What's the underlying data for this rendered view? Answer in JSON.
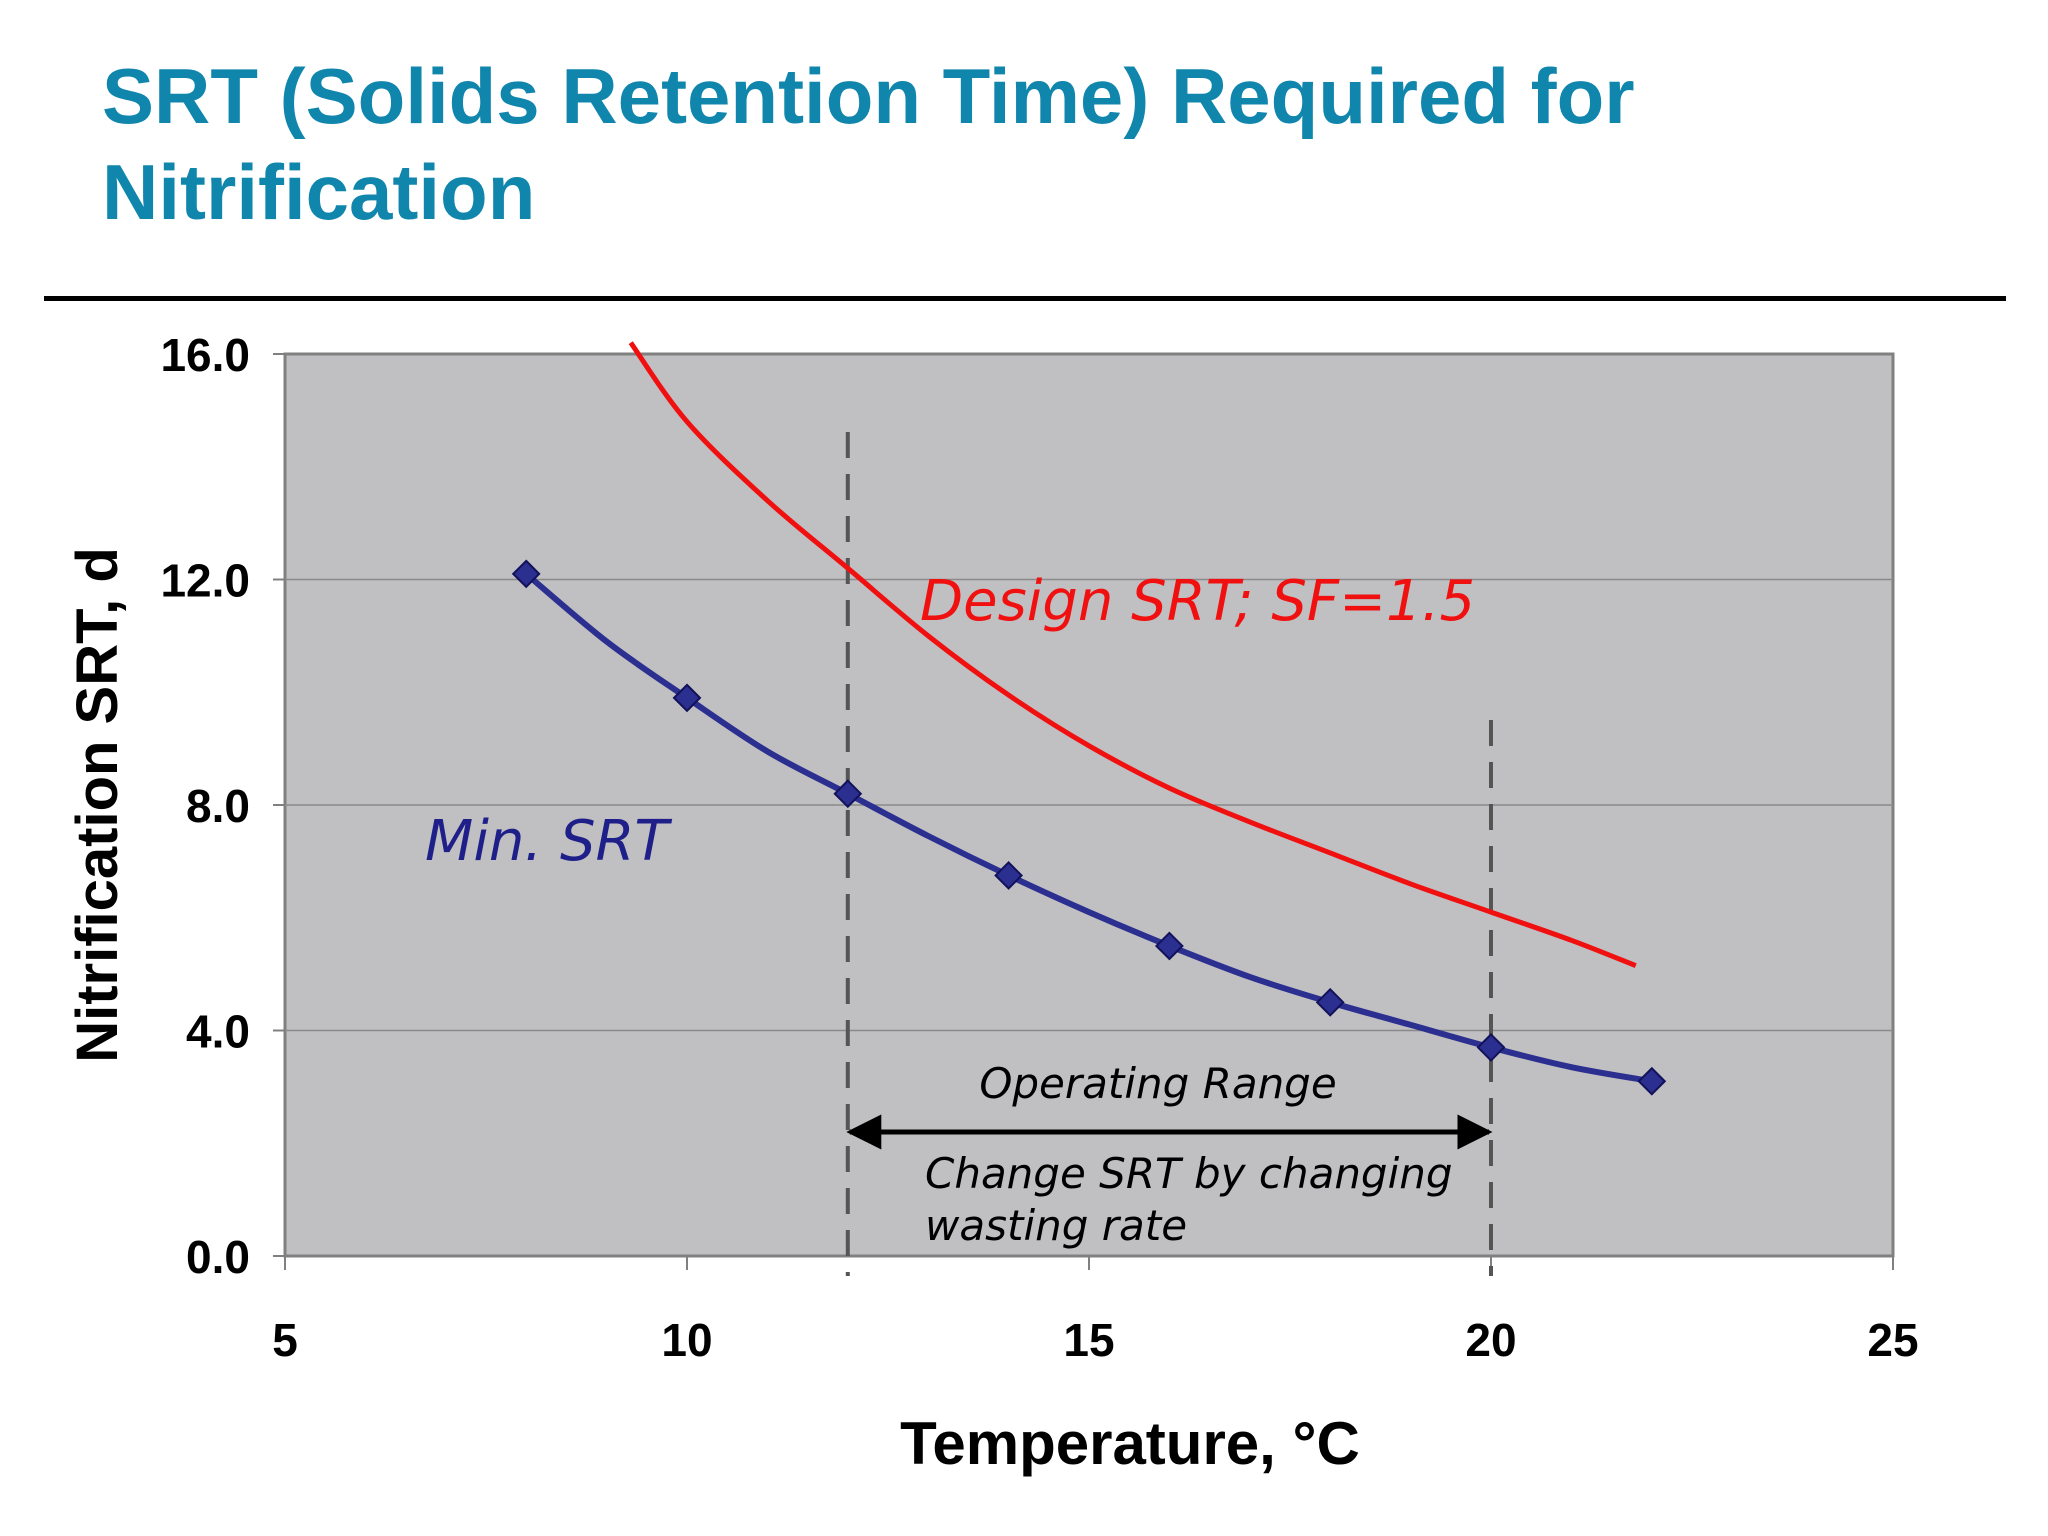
{
  "slide": {
    "title_line1": "SRT (Solids Retention Time) Required for",
    "title_line2": "Nitrification",
    "title_color": "#1186ad"
  },
  "chart_data": {
    "type": "line",
    "xlabel": "Temperature, °C",
    "ylabel": "Nitrification SRT, d",
    "xlim": [
      5,
      25
    ],
    "ylim": [
      0,
      16
    ],
    "x_ticks": [
      "5",
      "10",
      "15",
      "20",
      "25"
    ],
    "y_ticks": [
      "0.0",
      "4.0",
      "8.0",
      "12.0",
      "16.0"
    ],
    "grid": "horizontal",
    "plot_background": "#c0bfc2",
    "series": [
      {
        "name": "Min. SRT",
        "color": "#2b2f8f",
        "marker": "diamond",
        "x": [
          8,
          9,
          10,
          11,
          12,
          13,
          14,
          15,
          16,
          17,
          18,
          19,
          20,
          21,
          22
        ],
        "y": [
          12.1,
          10.9,
          9.9,
          8.95,
          8.2,
          7.45,
          6.75,
          6.1,
          5.5,
          4.95,
          4.5,
          4.1,
          3.7,
          3.35,
          3.1
        ],
        "marked_x": [
          8,
          10,
          12,
          14,
          16,
          18,
          20,
          22
        ]
      },
      {
        "name": "Design SRT; SF=1.5",
        "color": "#f01010",
        "marker": "none",
        "x": [
          9.3,
          10,
          11,
          12,
          13,
          14,
          15,
          16,
          17,
          18,
          19,
          20,
          21,
          21.8
        ],
        "y": [
          16.2,
          14.8,
          13.4,
          12.2,
          11.0,
          9.95,
          9.05,
          8.3,
          7.7,
          7.15,
          6.6,
          6.1,
          5.6,
          5.15
        ]
      }
    ],
    "operating_range": {
      "x_start": 12,
      "x_end": 20,
      "arrow_y": 2.2,
      "label": "Operating Range",
      "note_line1": "Change SRT by changing",
      "note_line2": "wasting rate"
    },
    "annotations": {
      "min_label": "Min. SRT",
      "design_label": "Design SRT; SF=1.5"
    }
  }
}
